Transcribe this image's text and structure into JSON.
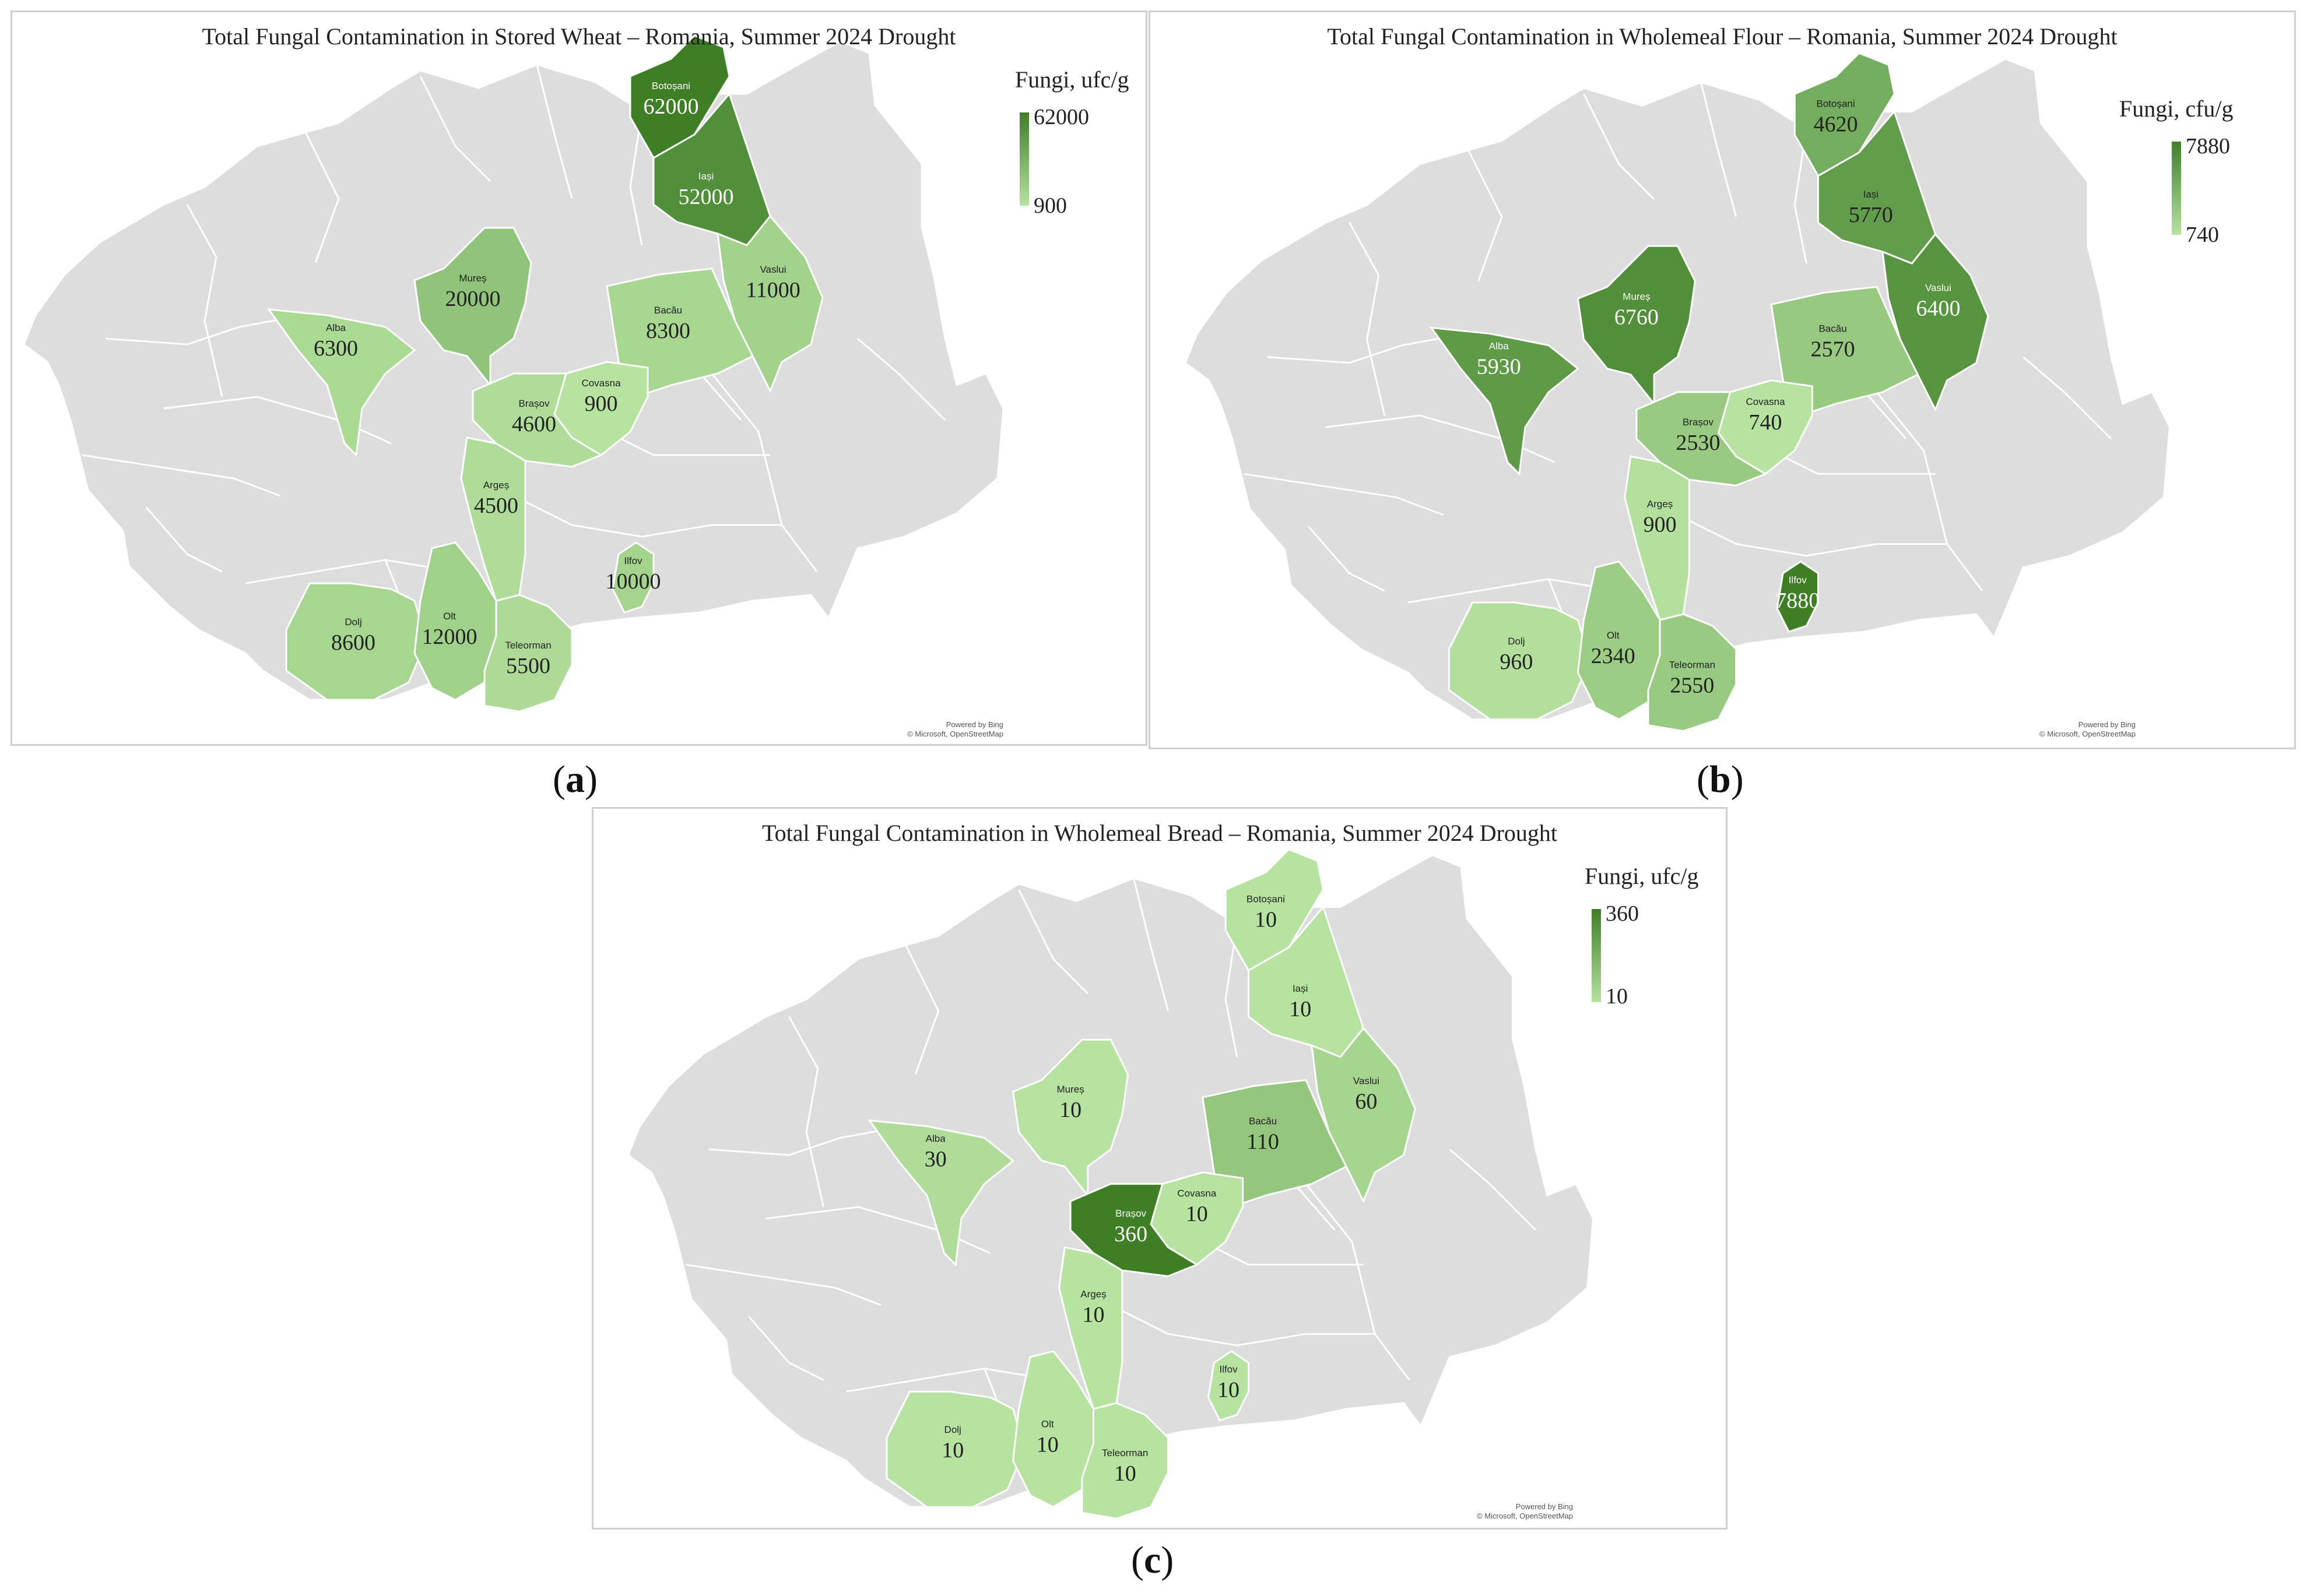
{
  "colors": {
    "min": "#b6e3a0",
    "max": "#3e7f26",
    "land": "#dddddd",
    "border": "#ffffff"
  },
  "chart_data": [
    {
      "type": "map",
      "panel_label": "a",
      "title": "Total Fungal Contamination in Stored Wheat – Romania, Summer 2024 Drought",
      "legend_title": "Fungi, ufc/g",
      "legend_max": "62000",
      "legend_min": "900",
      "value_min": 900,
      "value_max": 62000,
      "credit_line1": "Powered by Bing",
      "credit_line2": "© Microsoft, OpenStreetMap",
      "regions": [
        {
          "name": "Botoșani",
          "value": 62000
        },
        {
          "name": "Iași",
          "value": 52000
        },
        {
          "name": "Vaslui",
          "value": 11000
        },
        {
          "name": "Bacău",
          "value": 8300
        },
        {
          "name": "Mureș",
          "value": 20000
        },
        {
          "name": "Alba",
          "value": 6300
        },
        {
          "name": "Covasna",
          "value": 900
        },
        {
          "name": "Brașov",
          "value": 4600
        },
        {
          "name": "Argeș",
          "value": 4500
        },
        {
          "name": "Ilfov",
          "value": 10000
        },
        {
          "name": "Dolj",
          "value": 8600
        },
        {
          "name": "Olt",
          "value": 12000
        },
        {
          "name": "Teleorman",
          "value": 5500
        }
      ]
    },
    {
      "type": "map",
      "panel_label": "b",
      "title": "Total Fungal Contamination in Wholemeal Flour – Romania, Summer 2024 Drought",
      "legend_title": "Fungi, cfu/g",
      "legend_max": "7880",
      "legend_min": "740",
      "value_min": 740,
      "value_max": 7880,
      "credit_line1": "Powered by Bing",
      "credit_line2": "© Microsoft, OpenStreetMap",
      "regions": [
        {
          "name": "Botoșani",
          "value": 4620
        },
        {
          "name": "Iași",
          "value": 5770
        },
        {
          "name": "Vaslui",
          "value": 6400
        },
        {
          "name": "Bacău",
          "value": 2570
        },
        {
          "name": "Mureș",
          "value": 6760
        },
        {
          "name": "Alba",
          "value": 5930
        },
        {
          "name": "Covasna",
          "value": 740
        },
        {
          "name": "Brașov",
          "value": 2530
        },
        {
          "name": "Argeș",
          "value": 900
        },
        {
          "name": "Ilfov",
          "value": 7880
        },
        {
          "name": "Dolj",
          "value": 960
        },
        {
          "name": "Olt",
          "value": 2340
        },
        {
          "name": "Teleorman",
          "value": 2550
        }
      ]
    },
    {
      "type": "map",
      "panel_label": "c",
      "title": "Total Fungal Contamination in Wholemeal Bread – Romania, Summer 2024 Drought",
      "legend_title": "Fungi, ufc/g",
      "legend_max": "360",
      "legend_min": "10",
      "value_min": 10,
      "value_max": 360,
      "credit_line1": "Powered by Bing",
      "credit_line2": "© Microsoft, OpenStreetMap",
      "regions": [
        {
          "name": "Botoșani",
          "value": 10
        },
        {
          "name": "Iași",
          "value": 10
        },
        {
          "name": "Vaslui",
          "value": 60
        },
        {
          "name": "Bacău",
          "value": 110
        },
        {
          "name": "Mureș",
          "value": 10
        },
        {
          "name": "Alba",
          "value": 30
        },
        {
          "name": "Covasna",
          "value": 10
        },
        {
          "name": "Brașov",
          "value": 360
        },
        {
          "name": "Argeș",
          "value": 10
        },
        {
          "name": "Ilfov",
          "value": 10
        },
        {
          "name": "Dolj",
          "value": 10
        },
        {
          "name": "Olt",
          "value": 10
        },
        {
          "name": "Teleorman",
          "value": 10
        }
      ]
    }
  ]
}
